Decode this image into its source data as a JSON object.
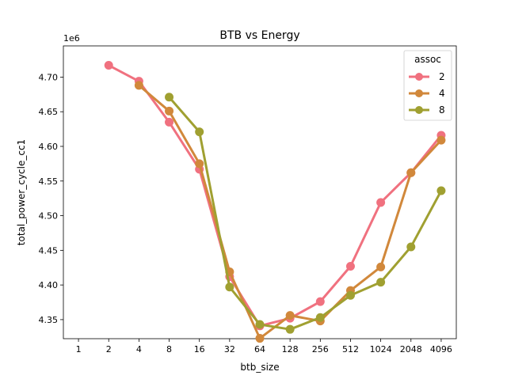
{
  "chart_data": {
    "type": "line",
    "title": "BTB vs Energy",
    "xlabel": "btb_size",
    "ylabel": "total_power_cycle_cc1",
    "y_offset_label": "1e6",
    "categories": [
      "1",
      "2",
      "4",
      "8",
      "16",
      "32",
      "64",
      "128",
      "256",
      "512",
      "1024",
      "2048",
      "4096"
    ],
    "ylim": [
      4.3225,
      4.745
    ],
    "yticks": [
      4.35,
      4.4,
      4.45,
      4.5,
      4.55,
      4.6,
      4.65,
      4.7
    ],
    "ytick_labels": [
      "4.35",
      "4.40",
      "4.45",
      "4.50",
      "4.55",
      "4.60",
      "4.65",
      "4.70"
    ],
    "grid": false,
    "legend": {
      "title": "assoc",
      "placement": "top-right"
    },
    "series": [
      {
        "name": "2",
        "color": "#f0717f",
        "values": [
          null,
          4.717,
          4.694,
          4.635,
          4.567,
          4.412,
          4.341,
          4.352,
          4.376,
          4.427,
          4.519,
          4.562,
          4.616
        ]
      },
      {
        "name": "4",
        "color": "#d1883b",
        "values": [
          null,
          null,
          4.688,
          4.651,
          4.575,
          4.419,
          4.323,
          4.356,
          4.348,
          4.392,
          4.426,
          4.562,
          4.609
        ]
      },
      {
        "name": "8",
        "color": "#a0a031",
        "values": [
          null,
          null,
          null,
          4.671,
          4.621,
          4.397,
          4.343,
          4.336,
          4.353,
          4.385,
          4.404,
          4.455,
          4.536
        ]
      }
    ]
  }
}
